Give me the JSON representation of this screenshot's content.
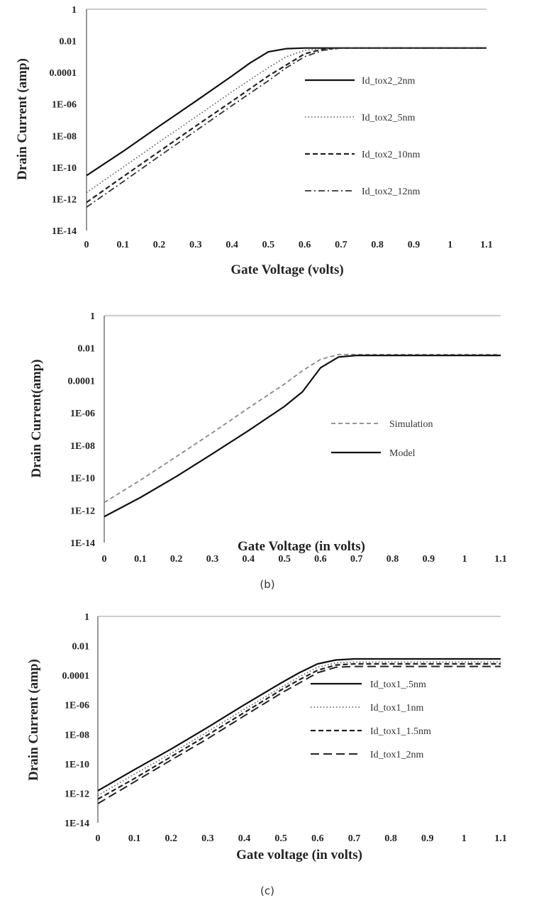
{
  "captions": {
    "b": "(b)",
    "c": "(c)"
  },
  "chart_data": [
    {
      "type": "line",
      "xlabel": "Gate Voltage (volts)",
      "ylabel": "Drain Current (amp)",
      "y_scale": "log",
      "ylim": [
        1e-14,
        1
      ],
      "xlim": [
        0,
        1.1
      ],
      "x_ticks": [
        "0",
        "0.1",
        "0.2",
        "0.3",
        "0.4",
        "0.5",
        "0.6",
        "0.7",
        "0.8",
        "0.9",
        "1",
        "1.1"
      ],
      "y_ticks": [
        "1",
        "0.01",
        "0.0001",
        "1E-06",
        "1E-08",
        "1E-10",
        "1E-12",
        "1E-14"
      ],
      "legend_position": "right",
      "series": [
        {
          "name": "Id_tox2_2nm",
          "style": "solid",
          "x": [
            0,
            0.1,
            0.2,
            0.3,
            0.4,
            0.45,
            0.5,
            0.55,
            0.6,
            0.7,
            0.8,
            0.9,
            1.0,
            1.1
          ],
          "y": [
            3e-11,
            1e-09,
            4e-08,
            1.5e-06,
            6e-05,
            0.0004,
            0.002,
            0.0032,
            0.0035,
            0.0035,
            0.0035,
            0.0035,
            0.0035,
            0.0035
          ]
        },
        {
          "name": "Id_tox2_5nm",
          "style": "dotted",
          "x": [
            0,
            0.1,
            0.2,
            0.3,
            0.4,
            0.5,
            0.55,
            0.6,
            0.65,
            0.7,
            0.8,
            0.9,
            1.0,
            1.1
          ],
          "y": [
            2.5e-12,
            1e-10,
            4e-09,
            1.5e-07,
            6e-06,
            0.0002,
            0.001,
            0.0025,
            0.0033,
            0.0035,
            0.0035,
            0.0035,
            0.0035,
            0.0035
          ]
        },
        {
          "name": "Id_tox2_10nm",
          "style": "dashed",
          "x": [
            0,
            0.1,
            0.2,
            0.3,
            0.4,
            0.5,
            0.55,
            0.6,
            0.65,
            0.7,
            0.8,
            0.9,
            1.0,
            1.1
          ],
          "y": [
            6e-13,
            2.5e-11,
            1e-09,
            4e-08,
            1.5e-06,
            6e-05,
            0.0003,
            0.0015,
            0.003,
            0.0035,
            0.0035,
            0.0035,
            0.0035,
            0.0035
          ]
        },
        {
          "name": "Id_tox2_12nm",
          "style": "dashdot",
          "x": [
            0,
            0.1,
            0.2,
            0.3,
            0.4,
            0.5,
            0.55,
            0.6,
            0.65,
            0.7,
            0.8,
            0.9,
            1.0,
            1.1
          ],
          "y": [
            3e-13,
            1.2e-11,
            5e-10,
            2e-08,
            8e-07,
            3e-05,
            0.0002,
            0.001,
            0.0025,
            0.0035,
            0.0035,
            0.0035,
            0.0035,
            0.0035
          ]
        }
      ]
    },
    {
      "type": "line",
      "xlabel": "Gate Voltage (in volts)",
      "ylabel": "Drain Current(amp)",
      "y_scale": "log",
      "ylim": [
        1e-14,
        1
      ],
      "xlim": [
        0,
        1.1
      ],
      "x_ticks": [
        "0",
        "0.1",
        "0.2",
        "0.3",
        "0.4",
        "0.5",
        "0.6",
        "0.7",
        "0.8",
        "0.9",
        "1",
        "1.1"
      ],
      "y_ticks": [
        "1",
        "0.01",
        "0.0001",
        "1E-06",
        "1E-08",
        "1E-10",
        "1E-12",
        "1E-14"
      ],
      "legend_position": "right",
      "series": [
        {
          "name": "Simulation",
          "style": "gray-dashed",
          "x": [
            0,
            0.1,
            0.2,
            0.3,
            0.4,
            0.5,
            0.55,
            0.6,
            0.65,
            0.7,
            0.8,
            0.9,
            1.0,
            1.1
          ],
          "y": [
            3e-12,
            7e-11,
            2e-09,
            6e-08,
            2e-06,
            6e-05,
            0.0004,
            0.002,
            0.004,
            0.004,
            0.004,
            0.004,
            0.004,
            0.004
          ]
        },
        {
          "name": "Model",
          "style": "solid",
          "x": [
            0,
            0.1,
            0.2,
            0.3,
            0.4,
            0.5,
            0.55,
            0.6,
            0.65,
            0.7,
            0.8,
            0.9,
            1.0,
            1.1
          ],
          "y": [
            4e-13,
            6e-12,
            1.2e-10,
            3e-09,
            8e-08,
            2.5e-06,
            2e-05,
            0.0006,
            0.0028,
            0.0035,
            0.0035,
            0.0035,
            0.0035,
            0.0035
          ]
        }
      ]
    },
    {
      "type": "line",
      "xlabel": "Gate voltage (in volts)",
      "ylabel": "Drain Current (amp)",
      "y_scale": "log",
      "ylim": [
        1e-14,
        1
      ],
      "xlim": [
        0,
        1.1
      ],
      "x_ticks": [
        "0",
        "0.1",
        "0.2",
        "0.3",
        "0.4",
        "0.5",
        "0.6",
        "0.7",
        "0.8",
        "0.9",
        "1",
        "1.1"
      ],
      "y_ticks": [
        "1",
        "0.01",
        "0.0001",
        "1E-06",
        "1E-08",
        "1E-10",
        "1E-12",
        "1E-14"
      ],
      "legend_position": "right",
      "series": [
        {
          "name": "Id_tox1_.5nm",
          "style": "solid",
          "x": [
            0,
            0.1,
            0.2,
            0.3,
            0.4,
            0.5,
            0.55,
            0.6,
            0.65,
            0.7,
            0.8,
            0.9,
            1.0,
            1.1
          ],
          "y": [
            1.5e-12,
            4e-11,
            1e-09,
            3e-08,
            1e-06,
            3e-05,
            0.00015,
            0.0006,
            0.0011,
            0.0013,
            0.0013,
            0.0013,
            0.0013,
            0.0013
          ]
        },
        {
          "name": "Id_tox1_1nm",
          "style": "dotted",
          "x": [
            0,
            0.1,
            0.2,
            0.3,
            0.4,
            0.5,
            0.55,
            0.6,
            0.65,
            0.7,
            0.8,
            0.9,
            1.0,
            1.1
          ],
          "y": [
            7e-13,
            2e-11,
            5e-10,
            1.5e-08,
            5e-07,
            1.5e-05,
            8e-05,
            0.00035,
            0.0007,
            0.0008,
            0.0008,
            0.0008,
            0.0008,
            0.0008
          ]
        },
        {
          "name": "Id_tox1_1.5nm",
          "style": "dashed",
          "x": [
            0,
            0.1,
            0.2,
            0.3,
            0.4,
            0.5,
            0.55,
            0.6,
            0.65,
            0.7,
            0.8,
            0.9,
            1.0,
            1.1
          ],
          "y": [
            4e-13,
            1e-11,
            3e-10,
            9e-09,
            3e-07,
            1e-05,
            5e-05,
            0.00022,
            0.0005,
            0.0006,
            0.0006,
            0.0006,
            0.0006,
            0.0006
          ]
        },
        {
          "name": "Id_tox1_2nm",
          "style": "longdash",
          "x": [
            0,
            0.1,
            0.2,
            0.3,
            0.4,
            0.5,
            0.55,
            0.6,
            0.65,
            0.7,
            0.8,
            0.9,
            1.0,
            1.1
          ],
          "y": [
            2e-13,
            6e-12,
            1.8e-10,
            5e-09,
            1.8e-07,
            6e-06,
            3e-05,
            0.00015,
            0.00035,
            0.0004,
            0.0004,
            0.0004,
            0.0004,
            0.0004
          ]
        }
      ]
    }
  ]
}
